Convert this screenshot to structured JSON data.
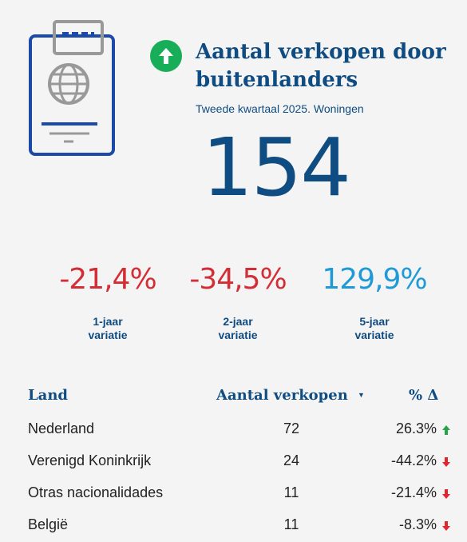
{
  "header": {
    "title": "Aantal verkopen door buitenlanders",
    "subtitle": "Tweede kwartaal 2025. Woningen",
    "trend_icon": "arrow-up-circle-icon",
    "value": "154"
  },
  "colors": {
    "primary": "#0f4c81",
    "trend_up": "#18ad58",
    "negative": "#d32d36",
    "positive": "#1e9ad6",
    "arrow_up": "#27a24a",
    "arrow_down": "#e3262d"
  },
  "stats": [
    {
      "value": "-21,4%",
      "label": "1-jaar\nvariatie",
      "sign": "negative"
    },
    {
      "value": "-34,5%",
      "label": "2-jaar\nvariatie",
      "sign": "negative"
    },
    {
      "value": "129,9%",
      "label": "5-jaar\nvariatie",
      "sign": "positive"
    }
  ],
  "table": {
    "headers": {
      "country": "Land",
      "sales": "Aantal verkopen",
      "change": "% Δ"
    },
    "sort_icon": "sort-desc-icon",
    "rows": [
      {
        "country": "Nederland",
        "sales": "72",
        "change": "26.3%",
        "direction": "up"
      },
      {
        "country": "Verenigd Koninkrijk",
        "sales": "24",
        "change": "-44.2%",
        "direction": "down"
      },
      {
        "country": "Otras nacionalidades",
        "sales": "11",
        "change": "-21.4%",
        "direction": "down"
      },
      {
        "country": "België",
        "sales": "11",
        "change": "-8.3%",
        "direction": "down"
      }
    ]
  }
}
